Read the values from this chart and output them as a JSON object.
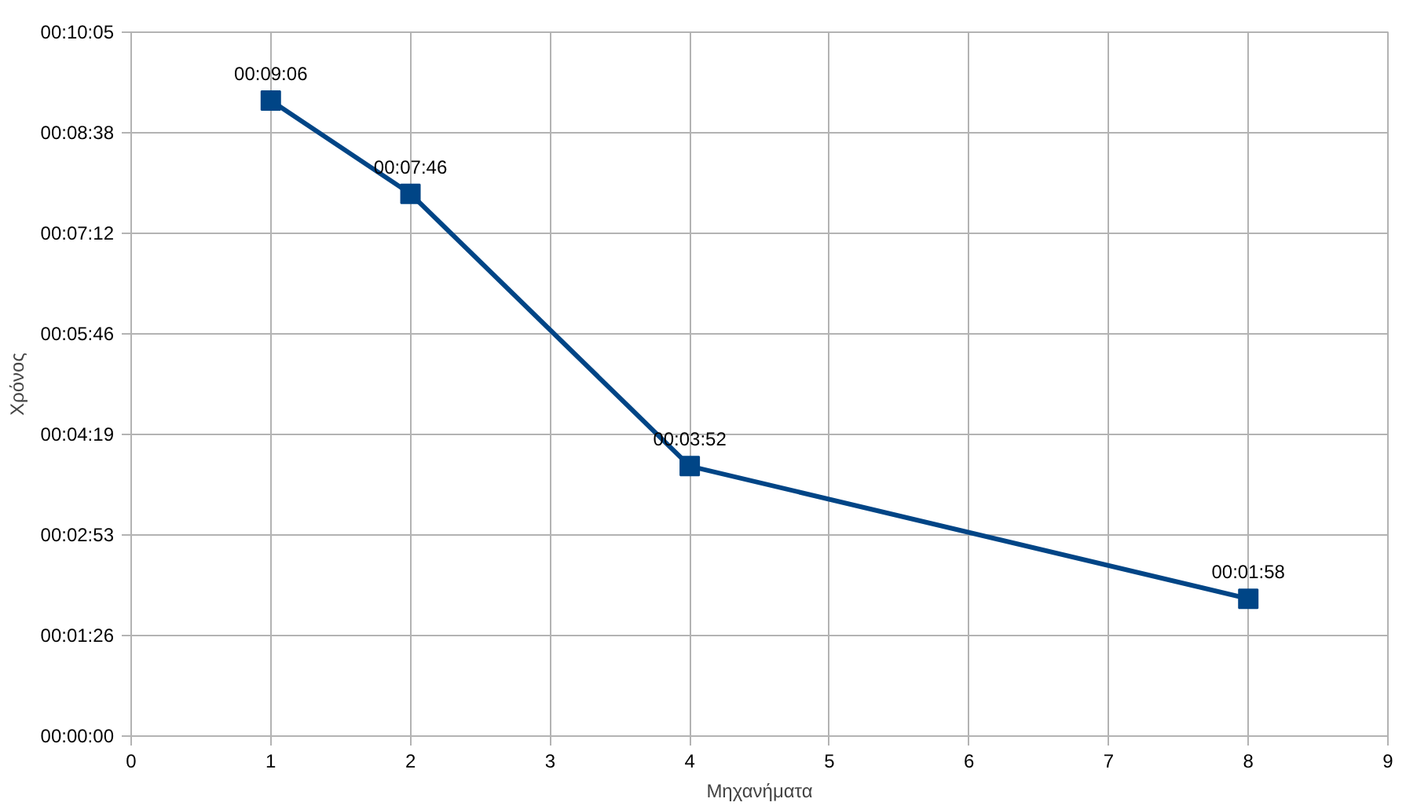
{
  "chart_data": {
    "type": "line",
    "xlabel": "Μηχανήματα",
    "ylabel": "Χρόνος",
    "x": [
      1,
      2,
      4,
      8
    ],
    "series": [
      {
        "color": "#004586",
        "values": [
          546,
          466,
          232,
          118
        ],
        "value_labels": [
          "00:09:06",
          "00:07:46",
          "00:03:52",
          "00:01:58"
        ]
      }
    ],
    "xlim": [
      0,
      9
    ],
    "xticks": [
      0,
      1,
      2,
      3,
      4,
      5,
      6,
      7,
      8,
      9
    ],
    "ylim": [
      0,
      604.8
    ],
    "yticks": [
      {
        "value": 0,
        "label": "00:00:00"
      },
      {
        "value": 86.4,
        "label": "00:01:26"
      },
      {
        "value": 172.8,
        "label": "00:02:53"
      },
      {
        "value": 259.2,
        "label": "00:04:19"
      },
      {
        "value": 345.6,
        "label": "00:05:46"
      },
      {
        "value": 432,
        "label": "00:07:12"
      },
      {
        "value": 518.4,
        "label": "00:08:38"
      },
      {
        "value": 604.8,
        "label": "00:10:05"
      }
    ],
    "grid": true,
    "marker": "square",
    "line_style": "solid"
  }
}
